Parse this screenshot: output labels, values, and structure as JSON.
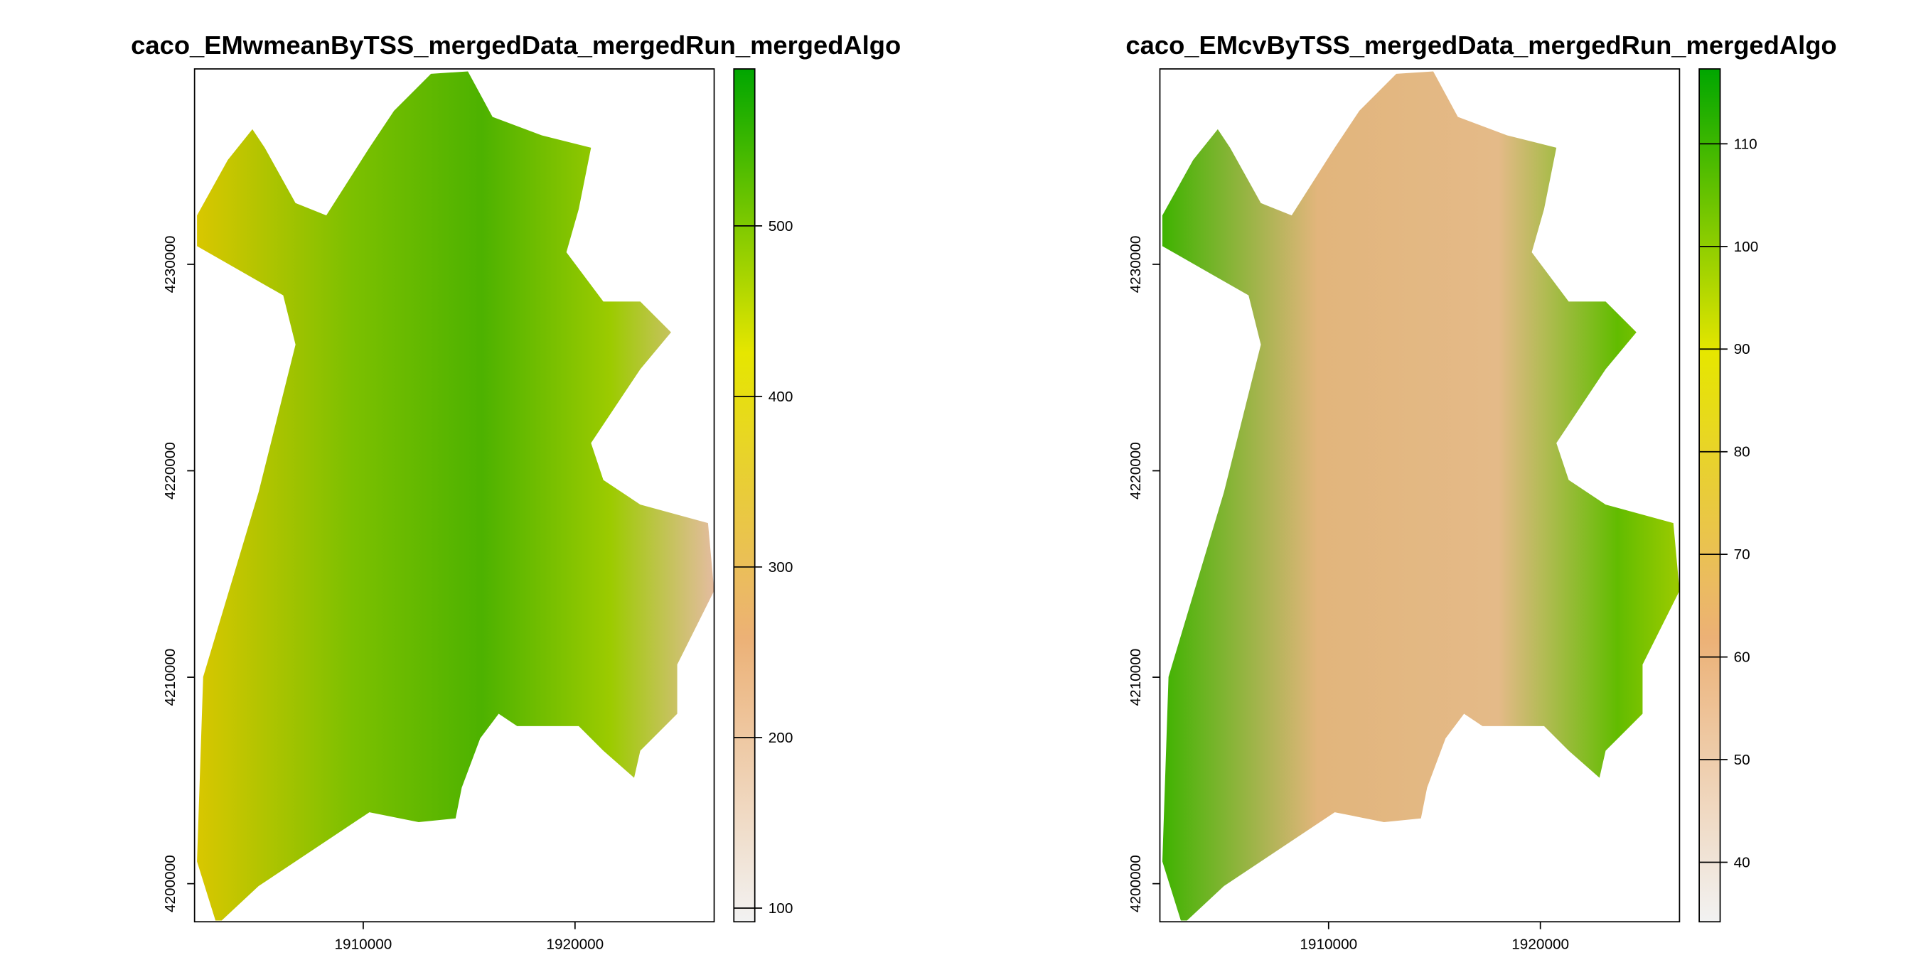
{
  "chart_data": [
    {
      "type": "raster",
      "title": "caco_EMwmeanByTSS_mergedData_mergedRun_mergedAlgo",
      "xlim": [
        1902035,
        1926570
      ],
      "xticks": [
        1910000,
        1920000
      ],
      "ylim": [
        4198155,
        4239464
      ],
      "yticks": [
        4200000,
        4210000,
        4220000,
        4230000
      ],
      "clim": [
        92,
        592
      ],
      "cticks": [
        100,
        200,
        300,
        400,
        500
      ],
      "colormap": [
        "#f2f2f2",
        "#ecb176",
        "#e6e600",
        "#00a600"
      ]
    },
    {
      "type": "raster",
      "title": "caco_EMcvByTSS_mergedData_mergedRun_mergedAlgo",
      "xlim": [
        1902035,
        1926570
      ],
      "xticks": [
        1910000,
        1920000
      ],
      "ylim": [
        4198155,
        4239464
      ],
      "yticks": [
        4200000,
        4210000,
        4220000,
        4230000
      ],
      "clim": [
        34.2,
        117.3
      ],
      "cticks": [
        40,
        50,
        60,
        70,
        80,
        90,
        100,
        110
      ],
      "colormap": [
        "#f2f2f2",
        "#ecb176",
        "#e6e600",
        "#00a600"
      ]
    }
  ]
}
